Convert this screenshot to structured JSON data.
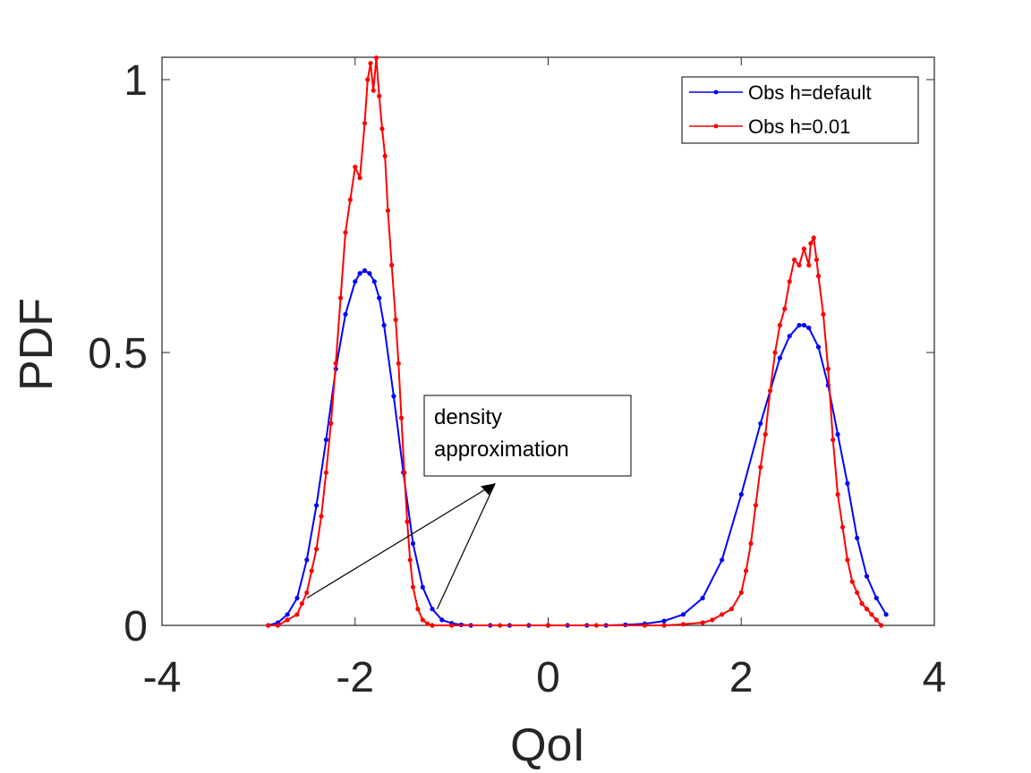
{
  "chart_data": {
    "type": "line",
    "title": "",
    "xlabel": "QoI",
    "ylabel": "PDF",
    "xlim": [
      -4,
      4
    ],
    "ylim": [
      0,
      1.04
    ],
    "xticks": [
      -4,
      -2,
      0,
      2,
      4
    ],
    "xtick_labels": [
      "-4",
      "-2",
      "0",
      "2",
      "4"
    ],
    "yticks": [
      0,
      0.5,
      1
    ],
    "ytick_labels": [
      "0",
      "0.5",
      "1"
    ],
    "grid": false,
    "legend_position": "top-right",
    "annotation": {
      "lines": [
        "density",
        "approximation"
      ],
      "arrow_tip": [
        -0.55,
        0.26
      ],
      "arrow_tails": [
        [
          -2.5,
          0.05
        ],
        [
          -1.15,
          0.03
        ]
      ]
    },
    "series": [
      {
        "name": "Obs h=default",
        "color": "#0000ff",
        "x": [
          -2.9,
          -2.8,
          -2.7,
          -2.6,
          -2.5,
          -2.4,
          -2.3,
          -2.2,
          -2.1,
          -2.0,
          -1.95,
          -1.9,
          -1.85,
          -1.8,
          -1.75,
          -1.7,
          -1.6,
          -1.5,
          -1.4,
          -1.3,
          -1.2,
          -1.1,
          -1.0,
          -0.9,
          -0.8,
          -0.6,
          -0.4,
          -0.2,
          0.0,
          0.2,
          0.4,
          0.6,
          0.8,
          1.0,
          1.2,
          1.4,
          1.6,
          1.8,
          2.0,
          2.2,
          2.4,
          2.5,
          2.6,
          2.65,
          2.7,
          2.8,
          2.9,
          3.0,
          3.1,
          3.2,
          3.3,
          3.4,
          3.5
        ],
        "y": [
          0.0,
          0.005,
          0.02,
          0.05,
          0.12,
          0.22,
          0.34,
          0.47,
          0.57,
          0.63,
          0.645,
          0.65,
          0.645,
          0.63,
          0.6,
          0.55,
          0.42,
          0.28,
          0.15,
          0.07,
          0.03,
          0.01,
          0.004,
          0.001,
          0.0,
          0.0,
          0.0,
          0.0,
          0.0,
          0.0,
          0.0,
          0.0,
          0.001,
          0.003,
          0.008,
          0.02,
          0.05,
          0.12,
          0.24,
          0.37,
          0.49,
          0.53,
          0.55,
          0.55,
          0.545,
          0.51,
          0.44,
          0.35,
          0.26,
          0.16,
          0.09,
          0.05,
          0.02
        ]
      },
      {
        "name": "Obs h=0.01",
        "color": "#ff0000",
        "x": [
          -2.9,
          -2.8,
          -2.7,
          -2.6,
          -2.55,
          -2.5,
          -2.45,
          -2.4,
          -2.35,
          -2.3,
          -2.25,
          -2.2,
          -2.15,
          -2.1,
          -2.05,
          -2.0,
          -1.95,
          -1.9,
          -1.87,
          -1.84,
          -1.81,
          -1.78,
          -1.75,
          -1.72,
          -1.69,
          -1.66,
          -1.62,
          -1.58,
          -1.55,
          -1.52,
          -1.49,
          -1.46,
          -1.43,
          -1.4,
          -1.35,
          -1.3,
          -1.25,
          -1.2,
          -1.0,
          -0.5,
          0.0,
          0.5,
          1.0,
          1.2,
          1.4,
          1.6,
          1.7,
          1.8,
          1.9,
          2.0,
          2.05,
          2.1,
          2.15,
          2.2,
          2.25,
          2.3,
          2.35,
          2.4,
          2.45,
          2.5,
          2.55,
          2.6,
          2.65,
          2.7,
          2.72,
          2.75,
          2.78,
          2.8,
          2.85,
          2.9,
          2.95,
          3.0,
          3.05,
          3.1,
          3.15,
          3.2,
          3.25,
          3.3,
          3.35,
          3.4,
          3.45
        ],
        "y": [
          0.0,
          0.0,
          0.01,
          0.02,
          0.04,
          0.06,
          0.1,
          0.14,
          0.2,
          0.28,
          0.37,
          0.48,
          0.6,
          0.72,
          0.78,
          0.84,
          0.82,
          0.92,
          1.0,
          1.03,
          0.98,
          1.04,
          0.97,
          0.91,
          0.86,
          0.76,
          0.66,
          0.56,
          0.48,
          0.38,
          0.28,
          0.19,
          0.12,
          0.07,
          0.03,
          0.01,
          0.003,
          0.0,
          0.0,
          0.0,
          0.0,
          0.0,
          0.0,
          0.0,
          0.002,
          0.005,
          0.01,
          0.02,
          0.03,
          0.06,
          0.1,
          0.15,
          0.22,
          0.29,
          0.35,
          0.43,
          0.5,
          0.55,
          0.58,
          0.63,
          0.67,
          0.66,
          0.69,
          0.66,
          0.7,
          0.71,
          0.67,
          0.64,
          0.57,
          0.47,
          0.34,
          0.24,
          0.18,
          0.12,
          0.08,
          0.06,
          0.04,
          0.03,
          0.02,
          0.01,
          0.0
        ]
      }
    ]
  }
}
